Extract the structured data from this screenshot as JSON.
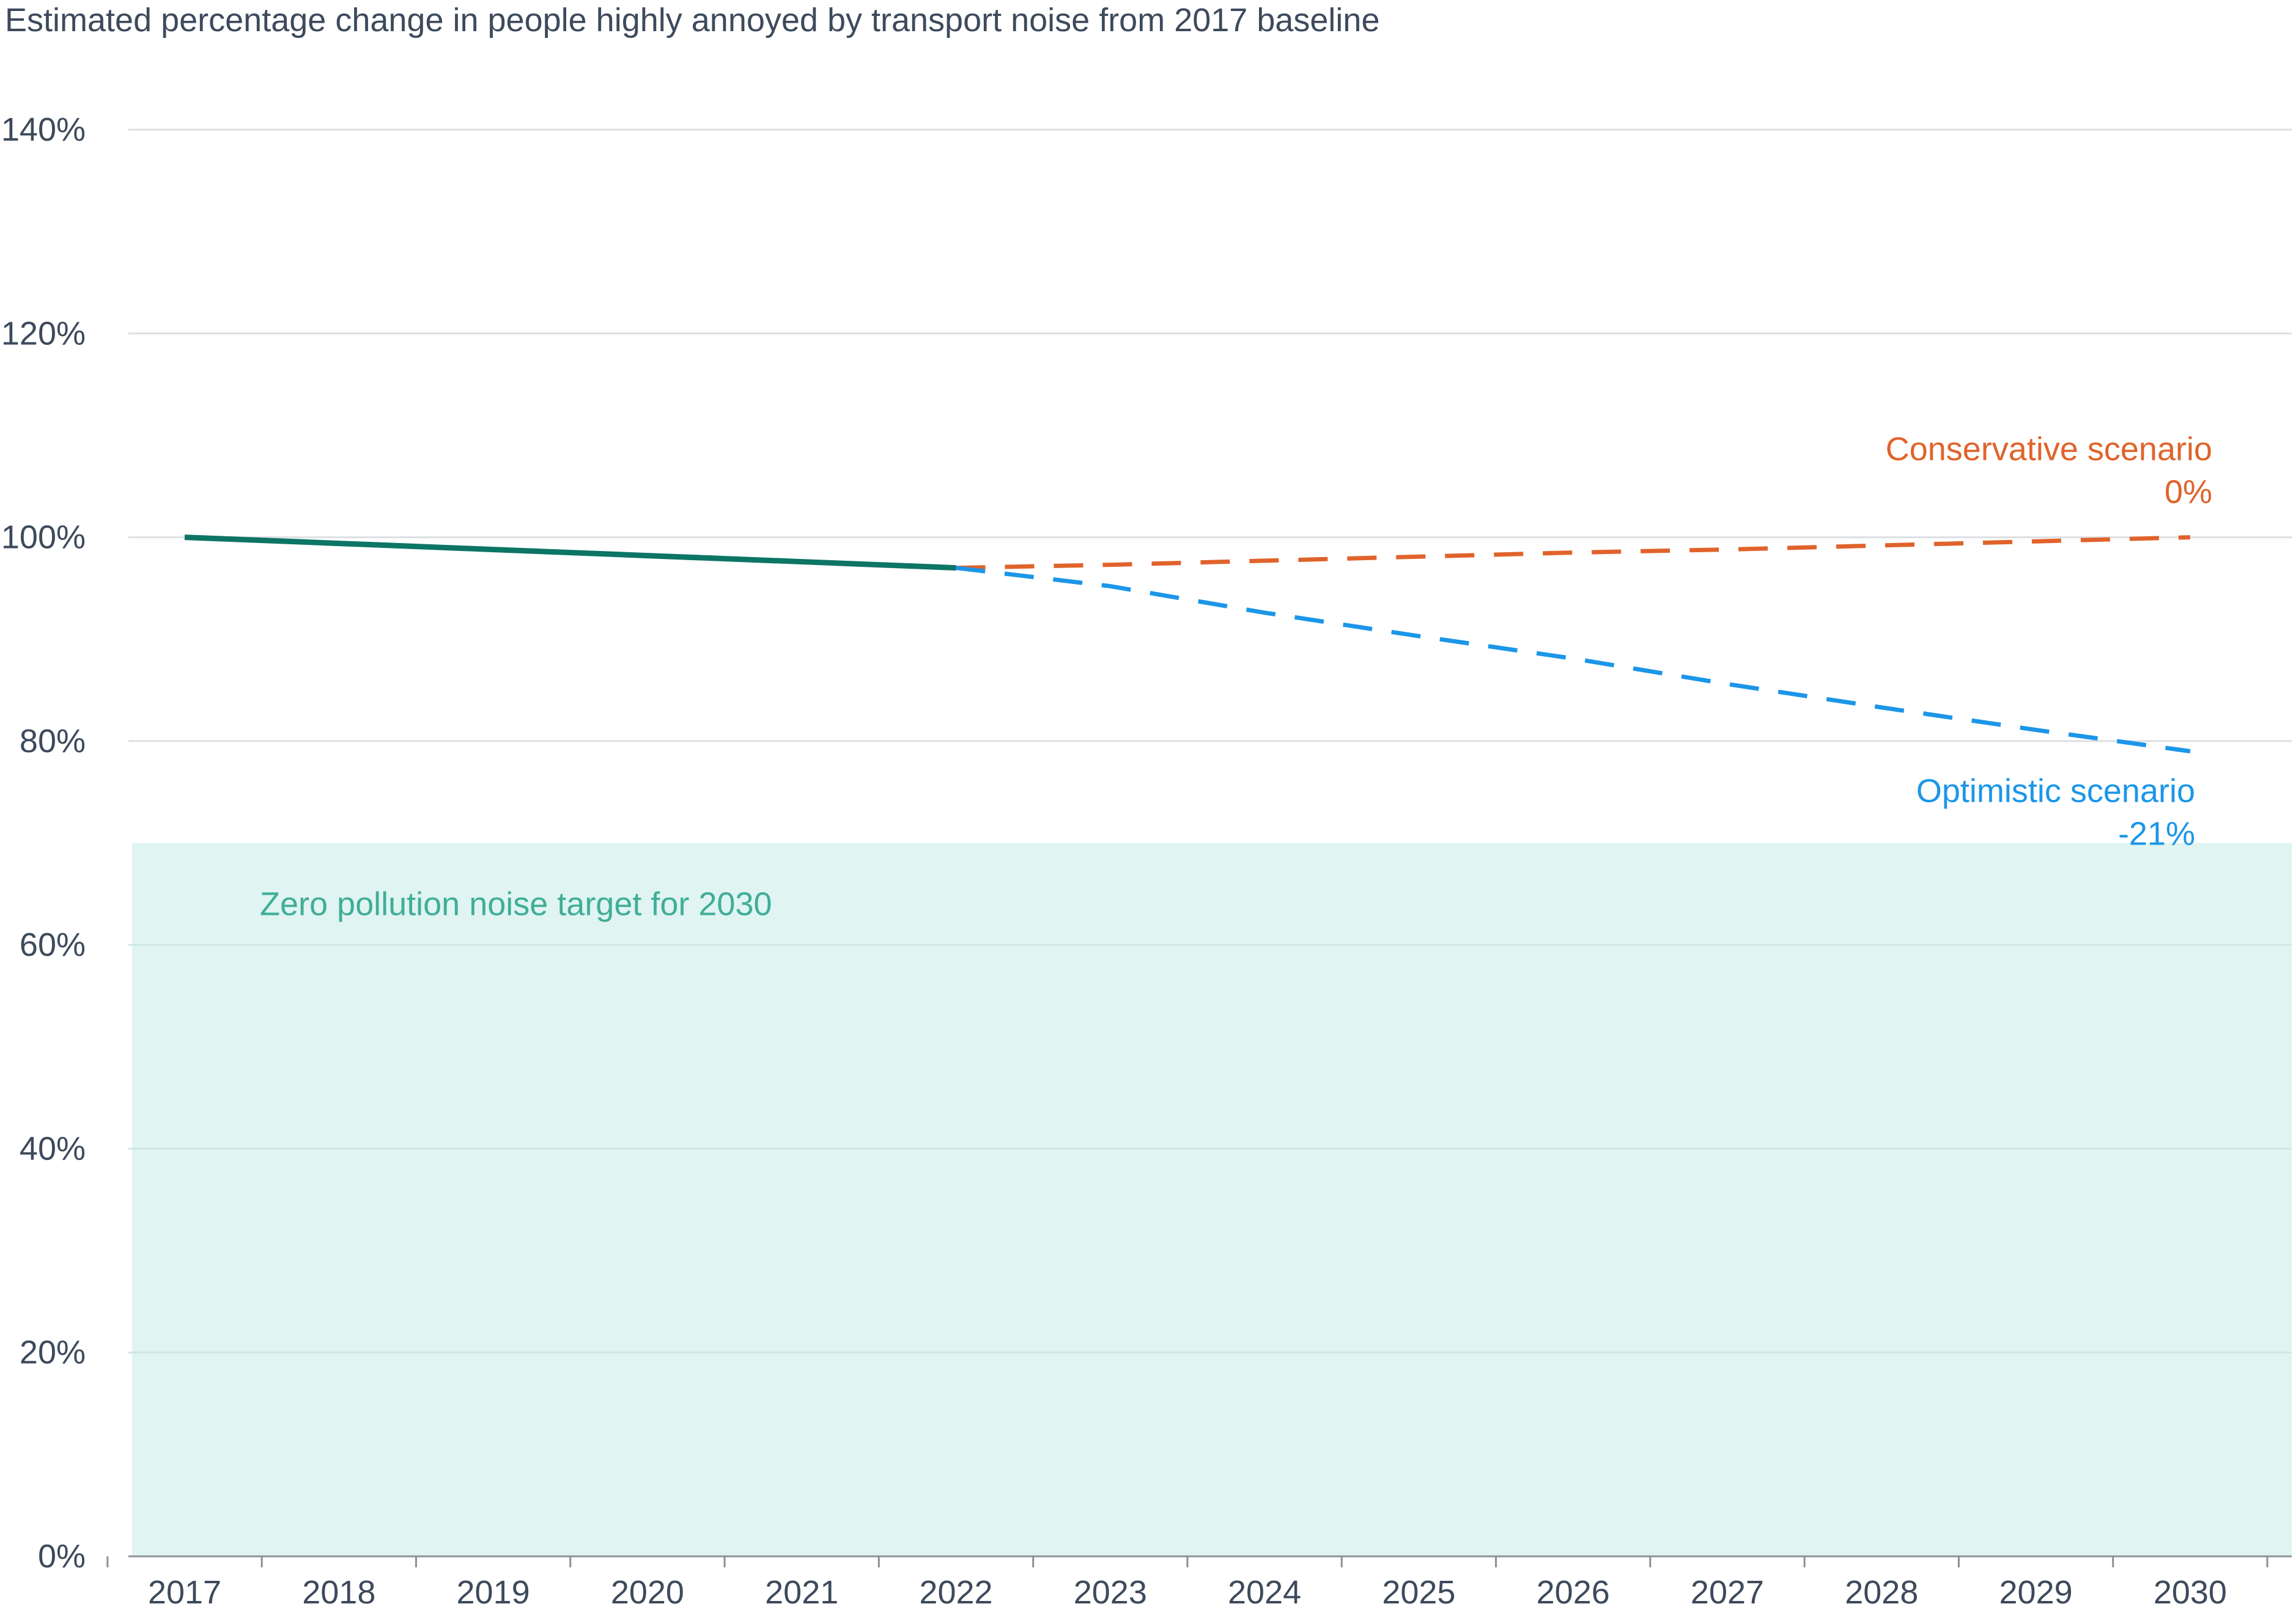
{
  "chart_data": {
    "type": "line",
    "title": "Estimated percentage change in people highly annoyed by transport noise from 2017 baseline",
    "x": [
      "2017",
      "2018",
      "2019",
      "2020",
      "2021",
      "2022",
      "2023",
      "2024",
      "2025",
      "2026",
      "2027",
      "2028",
      "2029",
      "2030"
    ],
    "ylim": [
      0,
      140
    ],
    "yticks": [
      0,
      20,
      40,
      60,
      80,
      100,
      120,
      140
    ],
    "ytick_labels": [
      "0%",
      "20%",
      "40%",
      "60%",
      "80%",
      "100%",
      "120%",
      "140%"
    ],
    "grid": "horizontal",
    "series": [
      {
        "key": "observed",
        "color": "#0c7565",
        "style": "solid",
        "x": [
          "2017",
          "2018",
          "2019",
          "2020",
          "2021",
          "2022"
        ],
        "values": [
          100,
          99.4,
          98.8,
          98.2,
          97.6,
          97
        ]
      },
      {
        "key": "conservative",
        "name": "Conservative scenario",
        "color": "#e0632b",
        "style": "dashed",
        "x": [
          "2022",
          "2023",
          "2024",
          "2025",
          "2026",
          "2027",
          "2028",
          "2029",
          "2030"
        ],
        "values": [
          97,
          97.3,
          97.7,
          98.1,
          98.5,
          98.8,
          99.2,
          99.6,
          100
        ]
      },
      {
        "key": "optimistic",
        "name": "Optimistic scenario",
        "color": "#1b96e8",
        "style": "dashed",
        "x": [
          "2022",
          "2023",
          "2024",
          "2025",
          "2026",
          "2027",
          "2028",
          "2029",
          "2030"
        ],
        "values": [
          97,
          95.2,
          92.6,
          90.3,
          88.1,
          85.6,
          83.3,
          81.1,
          79
        ]
      }
    ],
    "annotations": [
      {
        "series": "conservative",
        "label": "Conservative scenario",
        "value_label": "0%",
        "color": "#e0632b"
      },
      {
        "series": "optimistic",
        "label": "Optimistic scenario",
        "value_label": "-21%",
        "color": "#1b96e8"
      }
    ],
    "target_band": {
      "label": "Zero pollution noise target for 2030",
      "from": 0,
      "to": 70,
      "fill": "#e0f4f1",
      "label_color": "#3fae97"
    }
  }
}
